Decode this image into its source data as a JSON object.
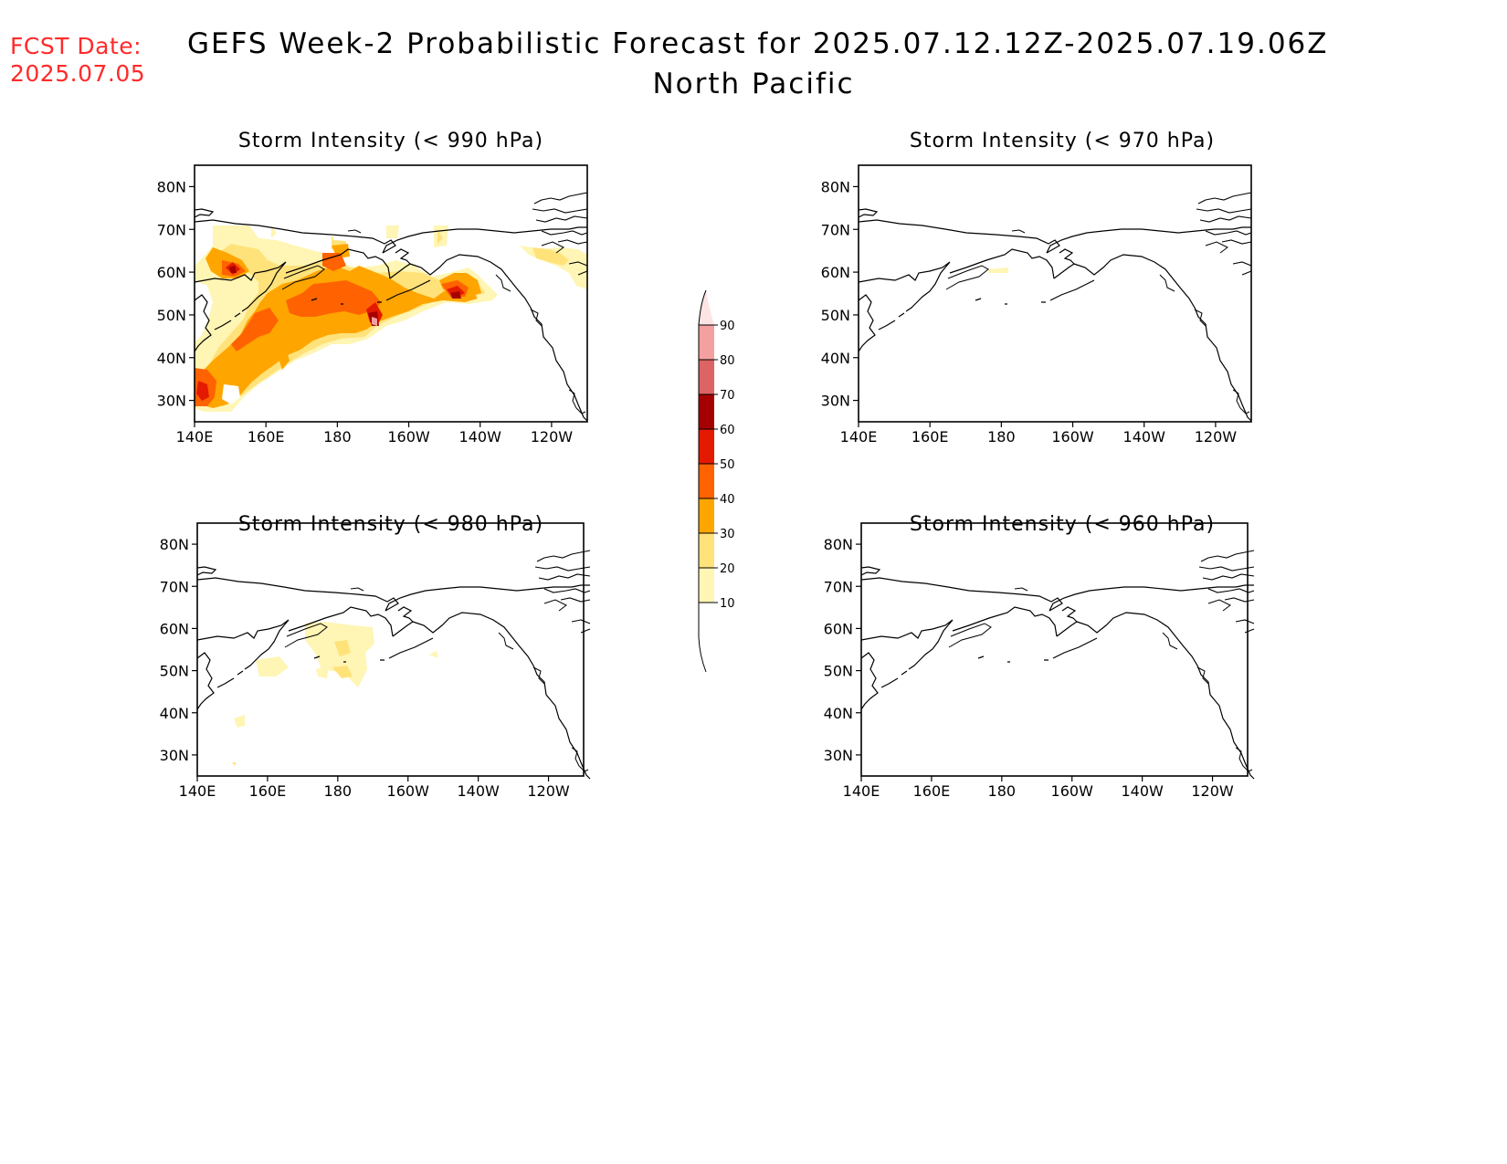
{
  "header": {
    "fcst_label": "FCST Date:",
    "fcst_date": "2025.07.05",
    "title_line1": "GEFS Week-2 Probabilistic Forecast for 2025.07.12.12Z-2025.07.19.06Z",
    "title_line2": "North Pacific"
  },
  "colors": {
    "coast": "#000000",
    "accent_text": "#ff2a2a"
  },
  "colorbar": {
    "levels": [
      "10",
      "20",
      "30",
      "40",
      "50",
      "60",
      "70",
      "80",
      "90"
    ],
    "colors": [
      "#fff5b4",
      "#ffe27a",
      "#ffa500",
      "#ff6200",
      "#e41a00",
      "#a50000",
      "#dc6464",
      "#f5a0a0",
      "#fde4e4"
    ]
  },
  "panels": [
    {
      "id": "p990",
      "title": "Storm Intensity (< 990 hPa)"
    },
    {
      "id": "p970",
      "title": "Storm Intensity (< 970 hPa)"
    },
    {
      "id": "p980",
      "title": "Storm Intensity (< 980 hPa)"
    },
    {
      "id": "p960",
      "title": "Storm Intensity (< 960 hPa)"
    }
  ],
  "axes": {
    "x_ticks": [
      "140E",
      "160E",
      "180",
      "160W",
      "140W",
      "120W"
    ],
    "y_ticks": [
      "80N",
      "70N",
      "60N",
      "50N",
      "40N",
      "30N"
    ]
  }
}
